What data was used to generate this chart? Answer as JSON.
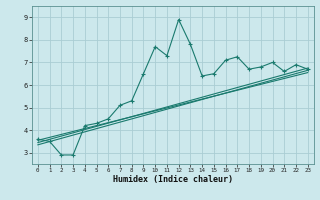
{
  "xlabel": "Humidex (Indice chaleur)",
  "bg_color": "#cce8ec",
  "grid_color": "#aacdd4",
  "line_color": "#1a7a6e",
  "xlim": [
    -0.5,
    23.5
  ],
  "ylim": [
    2.5,
    9.5
  ],
  "xticks": [
    0,
    1,
    2,
    3,
    4,
    5,
    6,
    7,
    8,
    9,
    10,
    11,
    12,
    13,
    14,
    15,
    16,
    17,
    18,
    19,
    20,
    21,
    22,
    23
  ],
  "yticks": [
    3,
    4,
    5,
    6,
    7,
    8,
    9
  ],
  "main_x": [
    0,
    1,
    2,
    3,
    4,
    5,
    6,
    7,
    8,
    9,
    10,
    11,
    12,
    13,
    14,
    15,
    16,
    17,
    18,
    19,
    20,
    21,
    22,
    23
  ],
  "main_y": [
    3.6,
    3.5,
    2.9,
    2.9,
    4.2,
    4.3,
    4.5,
    5.1,
    5.3,
    6.5,
    7.7,
    7.3,
    8.9,
    7.8,
    6.4,
    6.5,
    7.1,
    7.25,
    6.7,
    6.8,
    7.0,
    6.6,
    6.9,
    6.7
  ],
  "line1_x": [
    0,
    23
  ],
  "line1_y": [
    3.55,
    6.55
  ],
  "line2_x": [
    0,
    23
  ],
  "line2_y": [
    3.45,
    6.75
  ],
  "line3_x": [
    0,
    23
  ],
  "line3_y": [
    3.35,
    6.65
  ]
}
